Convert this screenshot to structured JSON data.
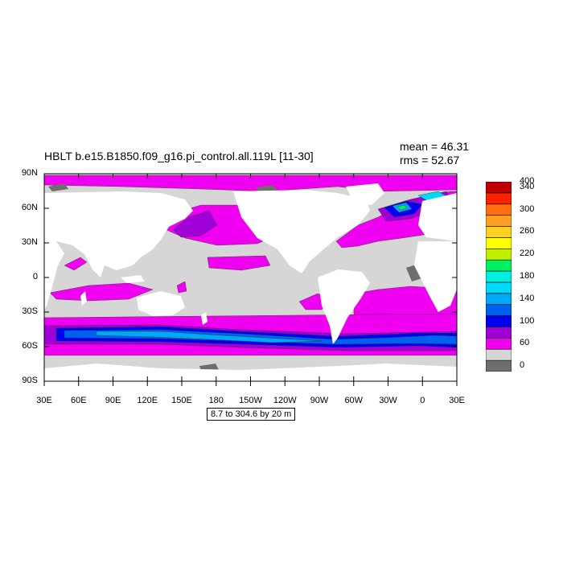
{
  "plot": {
    "title": "HBLT b.e15.B1850.f09_g16.pi_control.all.119L [11-30]",
    "mean_text": "mean = 46.31",
    "rms_text": "rms = 52.67",
    "contour_info": "8.7 to 304.6 by 20 m"
  },
  "axes": {
    "lat_labels": [
      "90N",
      "60N",
      "30N",
      "0",
      "30S",
      "60S",
      "90S"
    ],
    "lon_labels": [
      "30E",
      "60E",
      "90E",
      "120E",
      "150E",
      "180",
      "150W",
      "120W",
      "90W",
      "60W",
      "30W",
      "0",
      "30E"
    ]
  },
  "colorbar": {
    "colors": [
      "#6e6e6e",
      "#d6d6d6",
      "#f000f0",
      "#a000d8",
      "#0000f0",
      "#0060f0",
      "#00a8f8",
      "#00d8f8",
      "#00f0e0",
      "#00f060",
      "#c0f000",
      "#ffff00",
      "#ffd020",
      "#ffa020",
      "#ff7010",
      "#ff2000",
      "#c00000"
    ],
    "labels": [
      {
        "text": "400",
        "level": 400
      },
      {
        "text": "340",
        "level": 340
      },
      {
        "text": "300",
        "level": 300
      },
      {
        "text": "260",
        "level": 260
      },
      {
        "text": "220",
        "level": 220
      },
      {
        "text": "180",
        "level": 180
      },
      {
        "text": "140",
        "level": 140
      },
      {
        "text": "100",
        "level": 100
      },
      {
        "text": "60",
        "level": 60
      },
      {
        "text": "0",
        "level": 0
      }
    ]
  },
  "map_colors": {
    "land": "#ffffff",
    "ocean_low": "#d6d6d6",
    "ocean_dark": "#6e6e6e",
    "magenta": "#f000f0",
    "purple": "#a000d8",
    "blue": "#0000f0",
    "mid_blue": "#0060f0",
    "light_blue": "#00a8f8",
    "cyan": "#00d8f8",
    "green": "#00f060"
  }
}
